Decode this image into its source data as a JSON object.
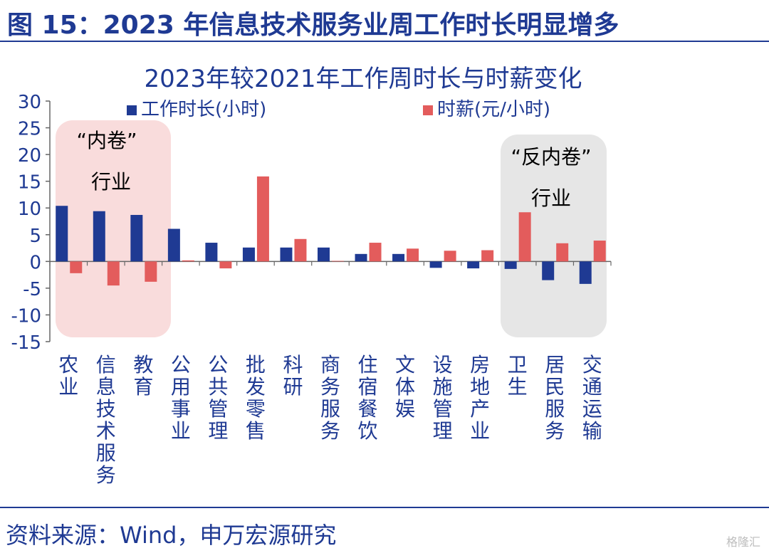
{
  "figure_title": "图 15：2023 年信息技术服务业周工作时长明显增多",
  "source_text": "资料来源：Wind，申万宏源研究",
  "watermark_text": "格隆汇",
  "colors": {
    "title": "#1f3a93",
    "series_hours": "#1f3a93",
    "series_wage": "#e35c5c",
    "involution_box": "#f9dcdc",
    "anti_involution_box": "#e6e6e6"
  },
  "annotations": {
    "involution": [
      "“内卷”",
      "行业"
    ],
    "anti_involution": [
      "“反内卷”",
      "行业"
    ]
  },
  "chart_data": {
    "type": "bar",
    "title": "2023年较2021年工作周时长与时薪变化",
    "xlabel": "",
    "ylabel": "",
    "ylim": [
      -15,
      30
    ],
    "yticks": [
      30,
      25,
      20,
      15,
      10,
      5,
      0,
      -5,
      -10,
      -15
    ],
    "grid": false,
    "legend_position": "top",
    "categories": [
      "农业",
      "信息技术服务",
      "教育",
      "公用事业",
      "公共管理",
      "批发零售",
      "科研",
      "商务服务",
      "住宿餐饮",
      "文体娱",
      "设施管理",
      "房地产业",
      "卫生",
      "居民服务",
      "交通运输"
    ],
    "series": [
      {
        "name": "工作时长(小时)",
        "values": [
          10.4,
          9.4,
          8.7,
          6.1,
          3.5,
          2.6,
          2.6,
          2.6,
          1.4,
          1.4,
          -1.2,
          -1.3,
          -1.4,
          -3.5,
          -4.2
        ]
      },
      {
        "name": "时薪(元/小时)",
        "values": [
          -2.2,
          -4.5,
          -3.8,
          0.2,
          -1.3,
          15.9,
          4.2,
          0.1,
          3.5,
          2.4,
          2.0,
          2.1,
          9.2,
          3.4,
          3.9
        ]
      }
    ]
  }
}
